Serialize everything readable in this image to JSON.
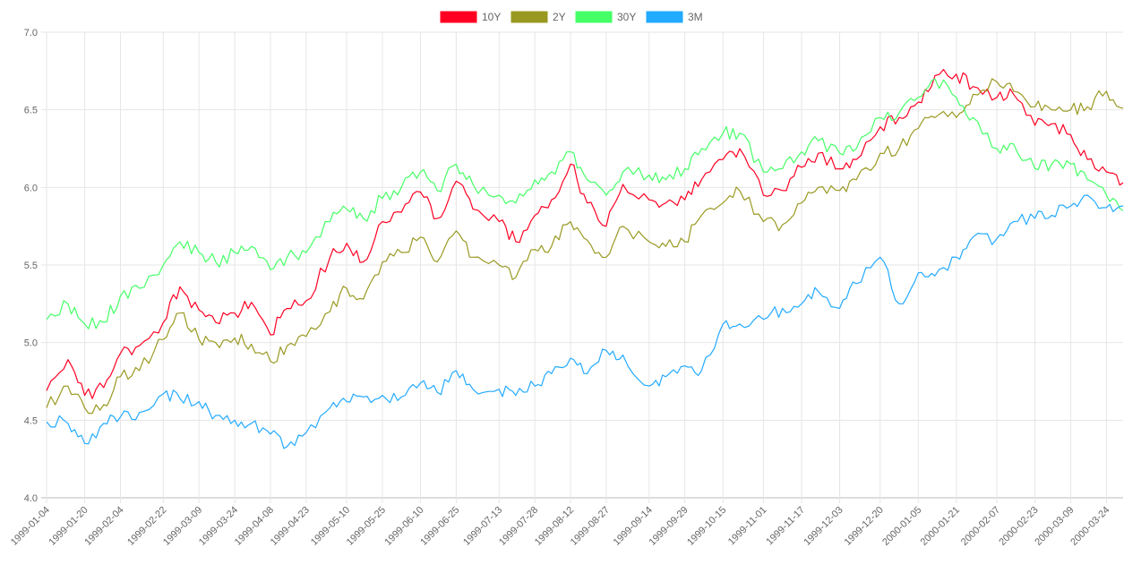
{
  "chart_data": {
    "type": "line",
    "title": "",
    "xlabel": "",
    "ylabel": "",
    "ylim": [
      4.0,
      7.0
    ],
    "y_ticks": [
      "4.0",
      "4.5",
      "5.0",
      "5.5",
      "6.0",
      "6.5",
      "7.0"
    ],
    "x_tick_labels": [
      "1999-01-04",
      "1999-01-20",
      "1999-02-04",
      "1999-02-22",
      "1999-03-09",
      "1999-03-24",
      "1999-04-08",
      "1999-04-23",
      "1999-05-10",
      "1999-05-25",
      "1999-06-10",
      "1999-06-25",
      "1999-07-13",
      "1999-07-28",
      "1999-08-12",
      "1999-08-27",
      "1999-09-14",
      "1999-09-29",
      "1999-10-15",
      "1999-11-01",
      "1999-11-17",
      "1999-12-03",
      "1999-12-20",
      "2000-01-05",
      "2000-01-21",
      "2000-02-07",
      "2000-02-23",
      "2000-03-09",
      "2000-03-24"
    ],
    "grid": true,
    "legend_position": "top-center",
    "x": [
      "1999-01-04",
      "1999-01-13",
      "1999-01-20",
      "1999-01-28",
      "1999-02-04",
      "1999-02-12",
      "1999-02-22",
      "1999-03-01",
      "1999-03-09",
      "1999-03-16",
      "1999-03-24",
      "1999-03-31",
      "1999-04-08",
      "1999-04-15",
      "1999-04-23",
      "1999-05-03",
      "1999-05-10",
      "1999-05-17",
      "1999-05-25",
      "1999-06-02",
      "1999-06-10",
      "1999-06-17",
      "1999-06-25",
      "1999-07-02",
      "1999-07-13",
      "1999-07-20",
      "1999-07-28",
      "1999-08-04",
      "1999-08-12",
      "1999-08-19",
      "1999-08-27",
      "1999-09-03",
      "1999-09-14",
      "1999-09-21",
      "1999-09-29",
      "1999-10-06",
      "1999-10-15",
      "1999-10-22",
      "1999-11-01",
      "1999-11-09",
      "1999-11-17",
      "1999-11-24",
      "1999-12-03",
      "1999-12-10",
      "1999-12-20",
      "1999-12-28",
      "2000-01-05",
      "2000-01-12",
      "2000-01-21",
      "2000-01-28",
      "2000-02-07",
      "2000-02-14",
      "2000-02-23",
      "2000-03-01",
      "2000-03-09",
      "2000-03-16",
      "2000-03-24",
      "2000-03-31"
    ],
    "series": [
      {
        "name": "10Y",
        "color": "#ff0022",
        "values": [
          4.69,
          4.89,
          4.66,
          4.71,
          4.93,
          4.98,
          5.13,
          5.36,
          5.21,
          5.13,
          5.19,
          5.26,
          5.05,
          5.22,
          5.27,
          5.55,
          5.64,
          5.52,
          5.78,
          5.84,
          5.97,
          5.8,
          6.04,
          5.86,
          5.78,
          5.65,
          5.82,
          5.92,
          6.15,
          5.9,
          5.75,
          6.02,
          5.92,
          5.9,
          5.92,
          6.05,
          6.18,
          6.25,
          5.95,
          5.98,
          6.13,
          6.22,
          6.12,
          6.18,
          6.39,
          6.45,
          6.55,
          6.72,
          6.73,
          6.65,
          6.58,
          6.6,
          6.4,
          6.41,
          6.34,
          6.18,
          6.1,
          6.03
        ]
      },
      {
        "name": "2Y",
        "color": "#999922",
        "values": [
          4.58,
          4.72,
          4.58,
          4.6,
          4.78,
          4.82,
          5.02,
          5.19,
          5.02,
          5.0,
          5.03,
          4.99,
          4.88,
          4.98,
          5.04,
          5.2,
          5.35,
          5.28,
          5.52,
          5.58,
          5.68,
          5.52,
          5.72,
          5.55,
          5.5,
          5.42,
          5.6,
          5.62,
          5.78,
          5.66,
          5.55,
          5.75,
          5.65,
          5.62,
          5.65,
          5.82,
          5.9,
          5.98,
          5.78,
          5.76,
          5.9,
          6.0,
          5.98,
          6.05,
          6.22,
          6.25,
          6.38,
          6.45,
          6.45,
          6.6,
          6.68,
          6.62,
          6.52,
          6.5,
          6.5,
          6.52,
          6.62,
          6.51
        ]
      },
      {
        "name": "30Y",
        "color": "#44ff66",
        "values": [
          5.15,
          5.25,
          5.12,
          5.13,
          5.3,
          5.35,
          5.5,
          5.65,
          5.58,
          5.52,
          5.58,
          5.62,
          5.47,
          5.55,
          5.58,
          5.78,
          5.86,
          5.8,
          5.93,
          6.0,
          6.1,
          5.98,
          6.15,
          6.02,
          5.95,
          5.9,
          6.05,
          6.1,
          6.23,
          6.05,
          5.95,
          6.1,
          6.08,
          6.05,
          6.12,
          6.25,
          6.35,
          6.35,
          6.1,
          6.12,
          6.23,
          6.3,
          6.22,
          6.25,
          6.45,
          6.48,
          6.58,
          6.7,
          6.58,
          6.45,
          6.25,
          6.28,
          6.12,
          6.15,
          6.15,
          6.05,
          5.95,
          5.85
        ]
      },
      {
        "name": "3M",
        "color": "#22aaff",
        "values": [
          4.49,
          4.48,
          4.35,
          4.48,
          4.52,
          4.55,
          4.67,
          4.64,
          4.62,
          4.53,
          4.5,
          4.48,
          4.41,
          4.33,
          4.42,
          4.58,
          4.62,
          4.65,
          4.66,
          4.65,
          4.74,
          4.68,
          4.82,
          4.7,
          4.7,
          4.66,
          4.72,
          4.8,
          4.9,
          4.8,
          4.95,
          4.92,
          4.72,
          4.78,
          4.85,
          4.82,
          5.12,
          5.12,
          5.15,
          5.22,
          5.25,
          5.33,
          5.22,
          5.38,
          5.55,
          5.25,
          5.45,
          5.43,
          5.55,
          5.68,
          5.67,
          5.78,
          5.8,
          5.82,
          5.88,
          5.95,
          5.87,
          5.88
        ]
      }
    ]
  }
}
